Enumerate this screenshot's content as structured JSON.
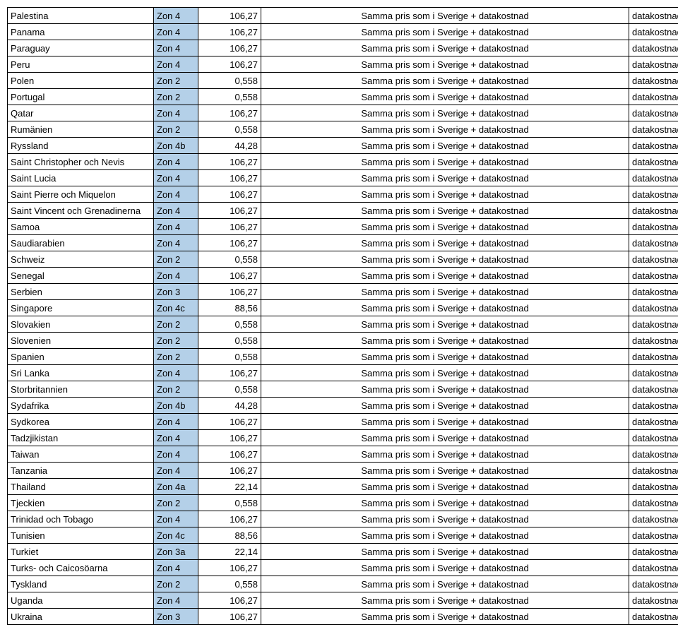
{
  "table": {
    "columns": [
      {
        "key": "country",
        "class": "col-country"
      },
      {
        "key": "zone",
        "class": "col-zone"
      },
      {
        "key": "price",
        "class": "col-price"
      },
      {
        "key": "desc",
        "class": "col-desc"
      },
      {
        "key": "extra",
        "class": "col-extra"
      }
    ],
    "desc_text": "Samma pris som i Sverige + datakostnad",
    "extra_text": "datakostnad",
    "rows": [
      {
        "country": "Palestina",
        "zone": "Zon 4",
        "price": "106,27"
      },
      {
        "country": "Panama",
        "zone": "Zon 4",
        "price": "106,27"
      },
      {
        "country": "Paraguay",
        "zone": "Zon 4",
        "price": "106,27"
      },
      {
        "country": "Peru",
        "zone": "Zon 4",
        "price": "106,27"
      },
      {
        "country": "Polen",
        "zone": "Zon 2",
        "price": "0,558"
      },
      {
        "country": "Portugal",
        "zone": "Zon 2",
        "price": "0,558"
      },
      {
        "country": "Qatar",
        "zone": "Zon 4",
        "price": "106,27"
      },
      {
        "country": "Rumänien",
        "zone": "Zon 2",
        "price": "0,558"
      },
      {
        "country": "Ryssland",
        "zone": "Zon 4b",
        "price": "44,28"
      },
      {
        "country": "Saint Christopher och Nevis",
        "zone": "Zon 4",
        "price": "106,27"
      },
      {
        "country": "Saint Lucia",
        "zone": "Zon 4",
        "price": "106,27"
      },
      {
        "country": "Saint Pierre och Miquelon",
        "zone": "Zon 4",
        "price": "106,27"
      },
      {
        "country": "Saint Vincent och Grenadinerna",
        "zone": "Zon 4",
        "price": "106,27"
      },
      {
        "country": "Samoa",
        "zone": "Zon 4",
        "price": "106,27"
      },
      {
        "country": "Saudiarabien",
        "zone": "Zon 4",
        "price": "106,27"
      },
      {
        "country": "Schweiz",
        "zone": "Zon 2",
        "price": "0,558"
      },
      {
        "country": "Senegal",
        "zone": "Zon 4",
        "price": "106,27"
      },
      {
        "country": "Serbien",
        "zone": "Zon 3",
        "price": "106,27"
      },
      {
        "country": "Singapore",
        "zone": "Zon 4c",
        "price": "88,56"
      },
      {
        "country": "Slovakien",
        "zone": "Zon 2",
        "price": "0,558"
      },
      {
        "country": "Slovenien",
        "zone": "Zon 2",
        "price": "0,558"
      },
      {
        "country": "Spanien",
        "zone": "Zon 2",
        "price": "0,558"
      },
      {
        "country": "Sri Lanka",
        "zone": "Zon 4",
        "price": "106,27"
      },
      {
        "country": "Storbritannien",
        "zone": "Zon 2",
        "price": "0,558"
      },
      {
        "country": "Sydafrika",
        "zone": "Zon 4b",
        "price": "44,28"
      },
      {
        "country": "Sydkorea",
        "zone": "Zon 4",
        "price": "106,27"
      },
      {
        "country": "Tadzjikistan",
        "zone": "Zon 4",
        "price": "106,27"
      },
      {
        "country": "Taiwan",
        "zone": "Zon 4",
        "price": "106,27"
      },
      {
        "country": "Tanzania",
        "zone": "Zon 4",
        "price": "106,27"
      },
      {
        "country": "Thailand",
        "zone": "Zon 4a",
        "price": "22,14"
      },
      {
        "country": "Tjeckien",
        "zone": "Zon 2",
        "price": "0,558"
      },
      {
        "country": "Trinidad och Tobago",
        "zone": "Zon 4",
        "price": "106,27"
      },
      {
        "country": "Tunisien",
        "zone": "Zon 4c",
        "price": "88,56"
      },
      {
        "country": "Turkiet",
        "zone": "Zon 3a",
        "price": "22,14"
      },
      {
        "country": "Turks- och Caicosöarna",
        "zone": "Zon 4",
        "price": "106,27"
      },
      {
        "country": "Tyskland",
        "zone": "Zon 2",
        "price": "0,558"
      },
      {
        "country": "Uganda",
        "zone": "Zon 4",
        "price": "106,27"
      },
      {
        "country": "Ukraina",
        "zone": "Zon 3",
        "price": "106,27"
      }
    ]
  }
}
